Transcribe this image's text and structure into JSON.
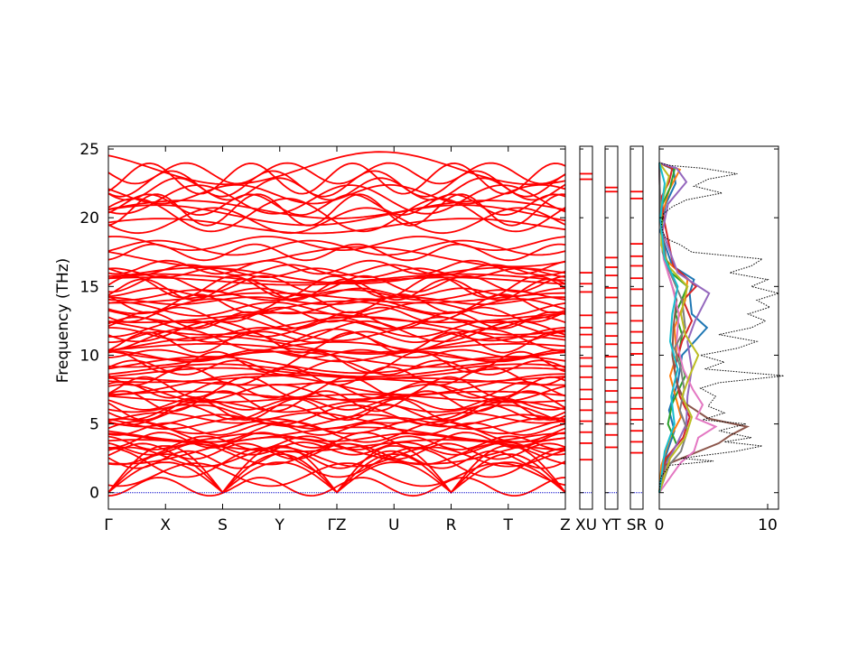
{
  "chart_data": {
    "type": "line",
    "title": "",
    "ylabel": "Frequency (THz)",
    "ylim": [
      -1.2,
      25.2
    ],
    "yticks": [
      0,
      5,
      10,
      15,
      20,
      25
    ],
    "yticklabels": [
      "0",
      "5",
      "10",
      "15",
      "20",
      "25"
    ],
    "grid": false,
    "zero_line": {
      "value": 0,
      "color": "#0000cc"
    },
    "band_color": "#ff0000",
    "band_path": {
      "type": "line",
      "series_description": "phonon dispersion curves along high-symmetry path",
      "xticklabels": [
        "Γ",
        "X",
        "S",
        "Y",
        "ΓZ",
        "U",
        "R",
        "T",
        "Z"
      ],
      "band_ranges_thz": [
        {
          "from": 0,
          "to": 3.5
        },
        {
          "from": 2.3,
          "to": 16.5
        },
        {
          "from": 17.0,
          "to": 18.3
        },
        {
          "from": 19.2,
          "to": 20.8
        },
        {
          "from": 20.0,
          "to": 23.8
        }
      ]
    },
    "small_segments": [
      {
        "label": "XU",
        "levels_thz": [
          23.2,
          22.8,
          16.0,
          15.2,
          14.6,
          12.9,
          12.0,
          11.5,
          10.6,
          9.8,
          9.2,
          8.4,
          7.5,
          6.8,
          6.0,
          5.2,
          4.4,
          3.6,
          2.4
        ]
      },
      {
        "label": "YT",
        "levels_thz": [
          22.2,
          21.9,
          17.1,
          16.4,
          15.8,
          14.9,
          14.2,
          13.1,
          12.3,
          11.4,
          10.8,
          9.9,
          9.1,
          8.2,
          7.4,
          6.6,
          5.8,
          5.0,
          4.2,
          3.3
        ]
      },
      {
        "label": "SR",
        "levels_thz": [
          21.9,
          21.4,
          18.1,
          17.2,
          16.5,
          15.6,
          14.8,
          13.6,
          12.5,
          11.7,
          10.9,
          10.1,
          9.3,
          8.5,
          7.6,
          6.9,
          6.1,
          5.3,
          4.5,
          3.7,
          2.9
        ]
      }
    ],
    "dos": {
      "xlim": [
        0,
        11
      ],
      "xticklabels": [
        "0",
        "10"
      ],
      "total_style": "dotted",
      "total": [
        [
          0.0,
          0.0
        ],
        [
          0.8,
          0.1
        ],
        [
          1.2,
          0.2
        ],
        [
          1.5,
          0.5
        ],
        [
          2.0,
          1.0
        ],
        [
          2.3,
          5.0
        ],
        [
          2.5,
          2.0
        ],
        [
          3.0,
          7.0
        ],
        [
          3.4,
          9.5
        ],
        [
          3.7,
          6.0
        ],
        [
          4.0,
          8.5
        ],
        [
          4.5,
          5.5
        ],
        [
          5.0,
          8.0
        ],
        [
          5.3,
          4.0
        ],
        [
          5.8,
          6.0
        ],
        [
          6.3,
          4.5
        ],
        [
          7.0,
          5.2
        ],
        [
          7.6,
          3.8
        ],
        [
          8.0,
          5.5
        ],
        [
          8.5,
          11.5
        ],
        [
          9.0,
          4.2
        ],
        [
          9.5,
          6.0
        ],
        [
          10.0,
          3.8
        ],
        [
          10.5,
          7.2
        ],
        [
          11.0,
          9.0
        ],
        [
          11.5,
          5.5
        ],
        [
          12.0,
          8.5
        ],
        [
          12.5,
          9.8
        ],
        [
          13.0,
          8.2
        ],
        [
          13.5,
          10.2
        ],
        [
          14.0,
          9.0
        ],
        [
          14.5,
          11.0
        ],
        [
          15.0,
          8.5
        ],
        [
          15.5,
          10.0
        ],
        [
          16.0,
          6.5
        ],
        [
          16.5,
          8.5
        ],
        [
          17.0,
          9.5
        ],
        [
          17.5,
          3.0
        ],
        [
          18.0,
          2.0
        ],
        [
          18.5,
          0.6
        ],
        [
          19.0,
          0.3
        ],
        [
          19.6,
          0.2
        ],
        [
          20.3,
          0.4
        ],
        [
          20.8,
          1.2
        ],
        [
          21.3,
          2.5
        ],
        [
          21.8,
          5.8
        ],
        [
          22.3,
          3.2
        ],
        [
          22.8,
          4.5
        ],
        [
          23.2,
          7.2
        ],
        [
          23.6,
          4.0
        ],
        [
          23.8,
          1.0
        ],
        [
          24.0,
          0.0
        ]
      ],
      "partials": [
        {
          "color": "#1f77b4",
          "points": [
            [
              0,
              0
            ],
            [
              2,
              0.3
            ],
            [
              4.5,
              1.4
            ],
            [
              6,
              0.9
            ],
            [
              8,
              1.7
            ],
            [
              10,
              2.1
            ],
            [
              12,
              4.4
            ],
            [
              13,
              3.0
            ],
            [
              14.5,
              2.8
            ],
            [
              15.5,
              3.2
            ],
            [
              16.5,
              1.2
            ],
            [
              19,
              0.1
            ],
            [
              21,
              0.6
            ],
            [
              22.5,
              1.5
            ],
            [
              23.5,
              1.3
            ],
            [
              24,
              0
            ]
          ]
        },
        {
          "color": "#ff7f0e",
          "points": [
            [
              0,
              0
            ],
            [
              2,
              0.2
            ],
            [
              4,
              1.0
            ],
            [
              5.5,
              2.0
            ],
            [
              7,
              1.5
            ],
            [
              8.5,
              1.0
            ],
            [
              10,
              1.6
            ],
            [
              12,
              1.4
            ],
            [
              14,
              2.4
            ],
            [
              15.5,
              2.6
            ],
            [
              17,
              0.5
            ],
            [
              20,
              0.2
            ],
            [
              22,
              0.9
            ],
            [
              23.5,
              1.9
            ],
            [
              24,
              0
            ]
          ]
        },
        {
          "color": "#2ca02c",
          "points": [
            [
              0,
              0
            ],
            [
              2,
              0.4
            ],
            [
              3.5,
              1.6
            ],
            [
              5,
              0.8
            ],
            [
              6.5,
              1.2
            ],
            [
              8.5,
              2.4
            ],
            [
              10,
              1.8
            ],
            [
              11.5,
              2.1
            ],
            [
              13,
              1.5
            ],
            [
              15,
              2.6
            ],
            [
              16,
              1.1
            ],
            [
              18,
              0.2
            ],
            [
              21,
              0.3
            ],
            [
              22.2,
              1.0
            ],
            [
              23.5,
              1.4
            ],
            [
              24,
              0
            ]
          ]
        },
        {
          "color": "#d62728",
          "points": [
            [
              0,
              0
            ],
            [
              2.5,
              0.6
            ],
            [
              4,
              2.2
            ],
            [
              5.5,
              2.8
            ],
            [
              7,
              1.9
            ],
            [
              9,
              1.4
            ],
            [
              11,
              2.1
            ],
            [
              12.5,
              3.0
            ],
            [
              14,
              2.2
            ],
            [
              15,
              3.4
            ],
            [
              16.5,
              1.3
            ],
            [
              20,
              0.4
            ],
            [
              21.5,
              0.2
            ],
            [
              22.6,
              0.9
            ],
            [
              23.6,
              1.2
            ],
            [
              24,
              0
            ]
          ]
        },
        {
          "color": "#9467bd",
          "points": [
            [
              0,
              0
            ],
            [
              2.2,
              0.7
            ],
            [
              3.5,
              1.6
            ],
            [
              5,
              2.5
            ],
            [
              7,
              2.6
            ],
            [
              9,
              3.0
            ],
            [
              11,
              2.6
            ],
            [
              12.5,
              3.3
            ],
            [
              14.5,
              4.6
            ],
            [
              16,
              1.7
            ],
            [
              19,
              0.3
            ],
            [
              21,
              0.8
            ],
            [
              22.6,
              2.5
            ],
            [
              23.6,
              1.6
            ],
            [
              24,
              0
            ]
          ]
        },
        {
          "color": "#8c564b",
          "points": [
            [
              0,
              0
            ],
            [
              2,
              0.5
            ],
            [
              3.6,
              5.5
            ],
            [
              4.2,
              6.6
            ],
            [
              4.8,
              8.1
            ],
            [
              5.4,
              4.5
            ],
            [
              6.5,
              2.4
            ],
            [
              8,
              1.6
            ],
            [
              10,
              1.2
            ],
            [
              12,
              1.3
            ],
            [
              14,
              1.6
            ],
            [
              16,
              0.8
            ],
            [
              20,
              0.1
            ],
            [
              24,
              0
            ]
          ]
        },
        {
          "color": "#e377c2",
          "points": [
            [
              0,
              0
            ],
            [
              2.2,
              2.0
            ],
            [
              3,
              3.2
            ],
            [
              4,
              3.6
            ],
            [
              4.8,
              5.2
            ],
            [
              5.4,
              3.4
            ],
            [
              6.4,
              4.0
            ],
            [
              7.5,
              3.1
            ],
            [
              9,
              2.2
            ],
            [
              11,
              1.6
            ],
            [
              13,
              1.8
            ],
            [
              15,
              1.2
            ],
            [
              17,
              0.4
            ],
            [
              20,
              0.1
            ],
            [
              24,
              0
            ]
          ]
        },
        {
          "color": "#7f7f7f",
          "points": [
            [
              0,
              0
            ],
            [
              2,
              0.9
            ],
            [
              3,
              2.0
            ],
            [
              4.5,
              2.6
            ],
            [
              6,
              1.9
            ],
            [
              7.5,
              2.3
            ],
            [
              9,
              2.0
            ],
            [
              10.5,
              1.4
            ],
            [
              12,
              2.4
            ],
            [
              14,
              2.1
            ],
            [
              16,
              1.0
            ],
            [
              17.5,
              0.3
            ],
            [
              20,
              0.1
            ],
            [
              24,
              0
            ]
          ]
        },
        {
          "color": "#bcbd22",
          "points": [
            [
              0,
              0
            ],
            [
              2.5,
              1.0
            ],
            [
              4,
              2.4
            ],
            [
              5.5,
              3.0
            ],
            [
              7,
              2.1
            ],
            [
              8.5,
              2.8
            ],
            [
              10,
              3.6
            ],
            [
              11.5,
              2.4
            ],
            [
              13,
              2.0
            ],
            [
              15,
              2.6
            ],
            [
              16.5,
              0.8
            ],
            [
              18,
              0.2
            ],
            [
              21,
              0.2
            ],
            [
              23,
              0.9
            ],
            [
              24,
              0
            ]
          ]
        },
        {
          "color": "#17becf",
          "points": [
            [
              0,
              0
            ],
            [
              3,
              0.5
            ],
            [
              5,
              1.4
            ],
            [
              7,
              1.1
            ],
            [
              9,
              1.7
            ],
            [
              11,
              1.0
            ],
            [
              13,
              1.2
            ],
            [
              15,
              1.7
            ],
            [
              17,
              0.5
            ],
            [
              20,
              0.1
            ],
            [
              22.5,
              0.5
            ],
            [
              24,
              0
            ]
          ]
        }
      ]
    }
  }
}
